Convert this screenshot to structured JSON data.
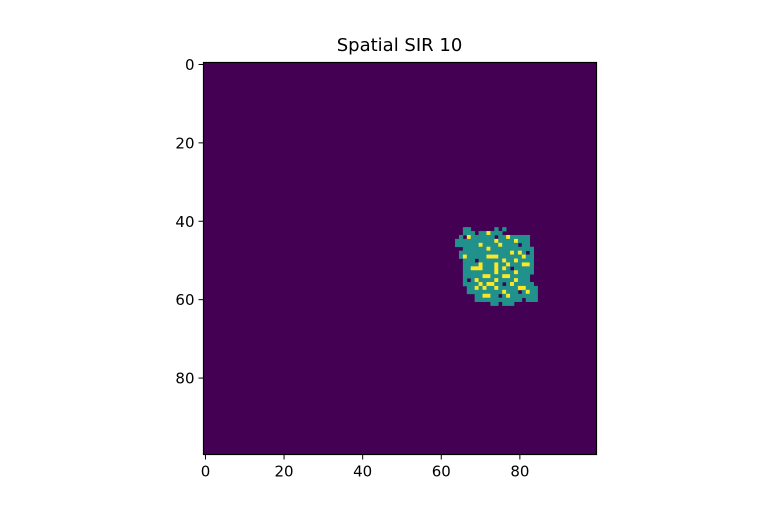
{
  "chart_data": {
    "type": "heatmap",
    "title": "Spatial SIR 10",
    "xlabel": "",
    "ylabel": "",
    "grid_size": [
      100,
      100
    ],
    "xlim": [
      -0.5,
      99.5
    ],
    "ylim": [
      99.5,
      -0.5
    ],
    "x_ticks": [
      0,
      20,
      40,
      60,
      80
    ],
    "y_ticks": [
      0,
      20,
      40,
      60,
      80
    ],
    "x_tick_labels": [
      "0",
      "20",
      "40",
      "60",
      "80"
    ],
    "y_tick_labels": [
      "0",
      "20",
      "40",
      "60",
      "80"
    ],
    "grid": false,
    "legend": "none",
    "colormap": "viridis",
    "states": [
      "susceptible",
      "recovered",
      "infected"
    ],
    "colors": {
      "susceptible": "#440154",
      "recovered": "#21918c",
      "infected": "#fde725"
    },
    "background_state": "susceptible",
    "recovered_rows": [
      [
        42,
        66,
        67
      ],
      [
        42,
        74,
        74
      ],
      [
        42,
        76,
        76
      ],
      [
        43,
        66,
        68
      ],
      [
        43,
        70,
        75
      ],
      [
        44,
        65,
        65
      ],
      [
        44,
        67,
        82
      ],
      [
        45,
        64,
        82
      ],
      [
        46,
        64,
        82
      ],
      [
        47,
        66,
        83
      ],
      [
        48,
        65,
        83
      ],
      [
        49,
        65,
        83
      ],
      [
        50,
        66,
        83
      ],
      [
        51,
        66,
        83
      ],
      [
        52,
        66,
        83
      ],
      [
        53,
        66,
        83
      ],
      [
        54,
        66,
        82
      ],
      [
        55,
        66,
        82
      ],
      [
        56,
        66,
        83
      ],
      [
        57,
        67,
        84
      ],
      [
        58,
        67,
        84
      ],
      [
        59,
        69,
        84
      ],
      [
        60,
        69,
        80
      ],
      [
        60,
        82,
        84
      ],
      [
        61,
        73,
        74
      ],
      [
        61,
        76,
        78
      ]
    ],
    "susceptible_holes": [
      [
        44,
        74
      ],
      [
        46,
        80
      ],
      [
        47,
        65
      ],
      [
        48,
        82
      ],
      [
        50,
        69
      ],
      [
        52,
        78
      ],
      [
        55,
        67
      ],
      [
        56,
        76
      ],
      [
        58,
        80
      ],
      [
        59,
        75
      ]
    ],
    "infected_cells": [
      [
        43,
        72
      ],
      [
        44,
        67
      ],
      [
        44,
        77
      ],
      [
        45,
        74
      ],
      [
        45,
        79
      ],
      [
        46,
        70
      ],
      [
        46,
        75
      ],
      [
        47,
        72
      ],
      [
        48,
        78
      ],
      [
        48,
        80
      ],
      [
        49,
        66
      ],
      [
        49,
        72
      ],
      [
        49,
        73
      ],
      [
        49,
        74
      ],
      [
        49,
        81
      ],
      [
        50,
        76
      ],
      [
        50,
        79
      ],
      [
        51,
        70
      ],
      [
        51,
        74
      ],
      [
        51,
        77
      ],
      [
        51,
        81
      ],
      [
        51,
        82
      ],
      [
        52,
        68
      ],
      [
        52,
        69
      ],
      [
        52,
        70
      ],
      [
        52,
        74
      ],
      [
        52,
        76
      ],
      [
        53,
        74
      ],
      [
        53,
        79
      ],
      [
        54,
        71
      ],
      [
        54,
        72
      ],
      [
        54,
        76
      ],
      [
        54,
        77
      ],
      [
        55,
        69
      ],
      [
        55,
        74
      ],
      [
        55,
        79
      ],
      [
        56,
        70
      ],
      [
        56,
        72
      ],
      [
        56,
        73
      ],
      [
        56,
        78
      ],
      [
        57,
        69
      ],
      [
        57,
        71
      ],
      [
        57,
        74
      ],
      [
        57,
        80
      ],
      [
        57,
        81
      ],
      [
        58,
        76
      ],
      [
        58,
        82
      ],
      [
        59,
        71
      ],
      [
        59,
        72
      ],
      [
        59,
        77
      ]
    ]
  }
}
